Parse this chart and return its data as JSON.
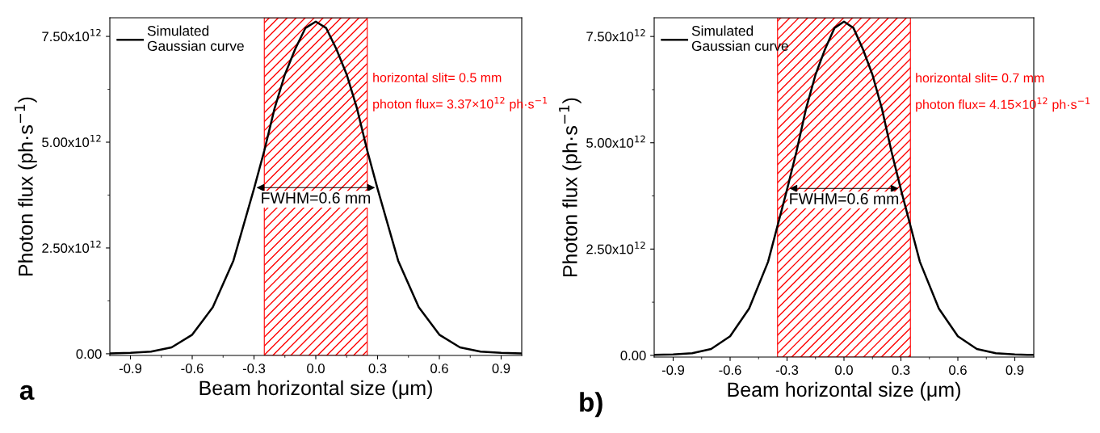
{
  "chart_data": [
    {
      "type": "line",
      "xlabel": "Beam horizontal size (μm)",
      "ylabel": "Photon flux (ph·s$^{−1}$)",
      "x": [
        -1.0,
        -0.9,
        -0.8,
        -0.7,
        -0.6,
        -0.5,
        -0.4,
        -0.3,
        -0.25,
        -0.2,
        -0.15,
        -0.1,
        -0.05,
        0.0,
        0.05,
        0.1,
        0.15,
        0.2,
        0.25,
        0.3,
        0.4,
        0.5,
        0.6,
        0.7,
        0.8,
        0.9,
        1.0
      ],
      "series": [
        {
          "name": "Simulated\nGaussian curve",
          "color": "#000000",
          "values": [
            10000000000.0,
            20000000000.0,
            50000000000.0,
            150000000000.0,
            450000000000.0,
            1100000000000.0,
            2200000000000.0,
            3900000000000.0,
            4800000000000.0,
            5800000000000.0,
            6600000000000.0,
            7200000000000.0,
            7700000000000.0,
            7850000000000.0,
            7700000000000.0,
            7200000000000.0,
            6600000000000.0,
            5800000000000.0,
            4800000000000.0,
            3900000000000.0,
            2200000000000.0,
            1100000000000.0,
            450000000000.0,
            150000000000.0,
            50000000000.0,
            20000000000.0,
            10000000000.0
          ]
        }
      ],
      "xlim": [
        -1.0,
        1.0
      ],
      "xticks": [
        -0.9,
        -0.6,
        -0.3,
        {
          "value": 0,
          "label": "0.0"
        },
        0.3,
        0.6,
        0.9
      ],
      "ylim": [
        -40000000000.0,
        7940000000000.0
      ],
      "yticks": [
        {
          "value": 0,
          "label": "0.00"
        },
        {
          "value": 2500000000000.0,
          "label": "2.50x10$^{12}$"
        },
        {
          "value": 5000000000000.0,
          "label": "5.00x10$^{12}$"
        },
        {
          "value": 7500000000000.0,
          "label": "7.50x10$^{12}$"
        }
      ],
      "bands": [
        {
          "axis": "x",
          "from": -0.25,
          "to": 0.25,
          "color": "#ff0000"
        }
      ],
      "annotations": [
        "FWHM=0.6 mm",
        "horizontal slit= 0.5 mm",
        "photon flux= 3.37×10$^{12}$ ph·s$^{−1}$",
        "a"
      ],
      "legend": "top left",
      "grid": false,
      "marker": "none",
      "line_style": "solid"
    },
    {
      "type": "line",
      "xlabel": "Beam horizontal size (μm)",
      "ylabel": "Photon flux (ph·s$^{−1}$)",
      "x": [
        -1.0,
        -0.9,
        -0.8,
        -0.7,
        -0.6,
        -0.5,
        -0.4,
        -0.3,
        -0.25,
        -0.2,
        -0.15,
        -0.1,
        -0.05,
        0.0,
        0.05,
        0.1,
        0.15,
        0.2,
        0.25,
        0.3,
        0.4,
        0.5,
        0.6,
        0.7,
        0.8,
        0.9,
        1.0
      ],
      "series": [
        {
          "name": "Simulated\nGaussian curve",
          "color": "#000000",
          "values": [
            10000000000.0,
            20000000000.0,
            50000000000.0,
            150000000000.0,
            450000000000.0,
            1100000000000.0,
            2200000000000.0,
            3900000000000.0,
            4800000000000.0,
            5800000000000.0,
            6600000000000.0,
            7200000000000.0,
            7700000000000.0,
            7850000000000.0,
            7700000000000.0,
            7200000000000.0,
            6600000000000.0,
            5800000000000.0,
            4800000000000.0,
            3900000000000.0,
            2200000000000.0,
            1100000000000.0,
            450000000000.0,
            150000000000.0,
            50000000000.0,
            20000000000.0,
            10000000000.0
          ]
        }
      ],
      "xlim": [
        -1.0,
        1.0
      ],
      "xticks": [
        -0.9,
        -0.6,
        -0.3,
        {
          "value": 0,
          "label": "0.0"
        },
        0.3,
        0.6,
        0.9
      ],
      "ylim": [
        -40000000000.0,
        7940000000000.0
      ],
      "yticks": [
        {
          "value": 0,
          "label": "0.00"
        },
        {
          "value": 2500000000000.0,
          "label": "2.50x10$^{12}$"
        },
        {
          "value": 5000000000000.0,
          "label": "5.00x10$^{12}$"
        },
        {
          "value": 7500000000000.0,
          "label": "7.50x10$^{12}$"
        }
      ],
      "bands": [
        {
          "axis": "x",
          "from": -0.35,
          "to": 0.35,
          "color": "#ff0000"
        }
      ],
      "annotations": [
        "FWHM=0.6 mm",
        "horizontal slit= 0.7 mm",
        "photon flux= 4.15×10$^{12}$ ph·s$^{−1}$",
        "b)"
      ],
      "legend": "top left",
      "grid": false,
      "marker": "none",
      "line_style": "solid"
    }
  ]
}
